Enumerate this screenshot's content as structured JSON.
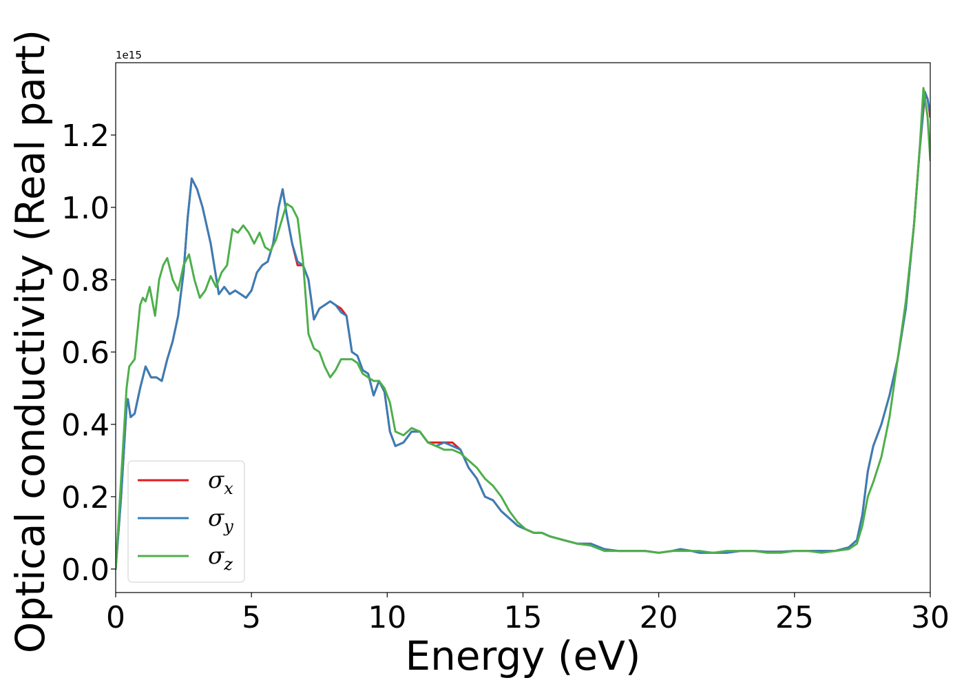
{
  "chart_data": {
    "type": "line",
    "xlabel": "Energy (eV)",
    "ylabel": "Optical conductivity (Real part)",
    "y_offset_label": "1e15",
    "xlim": [
      0,
      30
    ],
    "ylim": [
      -0.065,
      1.4
    ],
    "xticks": [
      0,
      5,
      10,
      15,
      20,
      25,
      30
    ],
    "xtick_labels": [
      "0",
      "5",
      "10",
      "15",
      "20",
      "25",
      "30"
    ],
    "yticks": [
      0.0,
      0.2,
      0.4,
      0.6,
      0.8,
      1.0,
      1.2
    ],
    "ytick_labels": [
      "0.0",
      "0.2",
      "0.4",
      "0.6",
      "0.8",
      "1.0",
      "1.2"
    ],
    "grid": false,
    "legend": "lower-left",
    "series": [
      {
        "name": "σ",
        "subscript": "x",
        "color": "#e41a1c",
        "x": [
          0,
          0.2,
          0.4,
          0.45,
          0.55,
          0.7,
          0.9,
          1.1,
          1.3,
          1.5,
          1.7,
          1.9,
          2.1,
          2.3,
          2.5,
          2.65,
          2.8,
          3.0,
          3.2,
          3.5,
          3.8,
          4.0,
          4.2,
          4.4,
          4.6,
          4.8,
          5.0,
          5.2,
          5.4,
          5.6,
          5.8,
          6.0,
          6.15,
          6.3,
          6.5,
          6.7,
          6.9,
          7.1,
          7.3,
          7.5,
          7.7,
          7.9,
          8.1,
          8.3,
          8.5,
          8.7,
          8.9,
          9.1,
          9.3,
          9.5,
          9.7,
          9.9,
          10.1,
          10.3,
          10.6,
          10.9,
          11.2,
          11.5,
          11.8,
          12.1,
          12.4,
          12.7,
          13.0,
          13.3,
          13.6,
          13.9,
          14.2,
          14.5,
          14.8,
          15.1,
          15.4,
          15.7,
          16.0,
          16.5,
          17.0,
          17.5,
          18.0,
          18.5,
          19.0,
          19.5,
          20.0,
          20.5,
          20.8,
          21.2,
          21.5,
          22.0,
          22.5,
          23.0,
          23.5,
          24.0,
          24.5,
          25.0,
          25.5,
          26.0,
          26.5,
          27.0,
          27.3,
          27.5,
          27.7,
          27.9,
          28.2,
          28.5,
          28.8,
          29.1,
          29.4,
          29.6,
          29.8,
          29.9,
          30.0
        ],
        "y": [
          0.0,
          0.2,
          0.45,
          0.47,
          0.42,
          0.43,
          0.5,
          0.56,
          0.53,
          0.53,
          0.52,
          0.58,
          0.63,
          0.7,
          0.82,
          0.97,
          1.08,
          1.05,
          1.0,
          0.9,
          0.76,
          0.78,
          0.76,
          0.77,
          0.76,
          0.75,
          0.77,
          0.82,
          0.84,
          0.85,
          0.9,
          1.0,
          1.05,
          0.98,
          0.9,
          0.84,
          0.84,
          0.8,
          0.69,
          0.72,
          0.73,
          0.74,
          0.73,
          0.72,
          0.7,
          0.6,
          0.59,
          0.55,
          0.54,
          0.48,
          0.52,
          0.49,
          0.38,
          0.34,
          0.35,
          0.38,
          0.38,
          0.35,
          0.35,
          0.35,
          0.35,
          0.33,
          0.28,
          0.25,
          0.2,
          0.19,
          0.16,
          0.14,
          0.12,
          0.11,
          0.1,
          0.1,
          0.09,
          0.08,
          0.07,
          0.07,
          0.055,
          0.05,
          0.05,
          0.05,
          0.045,
          0.05,
          0.055,
          0.05,
          0.045,
          0.045,
          0.045,
          0.05,
          0.05,
          0.048,
          0.048,
          0.05,
          0.05,
          0.05,
          0.05,
          0.06,
          0.08,
          0.15,
          0.27,
          0.34,
          0.4,
          0.48,
          0.58,
          0.72,
          0.95,
          1.15,
          1.31,
          1.3,
          1.25
        ]
      },
      {
        "name": "σ",
        "subscript": "y",
        "color": "#377eb8",
        "x": [
          0,
          0.2,
          0.4,
          0.45,
          0.55,
          0.7,
          0.9,
          1.1,
          1.3,
          1.5,
          1.7,
          1.9,
          2.1,
          2.3,
          2.5,
          2.65,
          2.8,
          3.0,
          3.2,
          3.5,
          3.8,
          4.0,
          4.2,
          4.4,
          4.6,
          4.8,
          5.0,
          5.2,
          5.4,
          5.6,
          5.8,
          6.0,
          6.15,
          6.3,
          6.5,
          6.7,
          6.9,
          7.1,
          7.3,
          7.5,
          7.7,
          7.9,
          8.1,
          8.3,
          8.5,
          8.7,
          8.9,
          9.1,
          9.3,
          9.5,
          9.7,
          9.9,
          10.1,
          10.3,
          10.6,
          10.9,
          11.2,
          11.5,
          11.8,
          12.1,
          12.4,
          12.7,
          13.0,
          13.3,
          13.6,
          13.9,
          14.2,
          14.5,
          14.8,
          15.1,
          15.4,
          15.7,
          16.0,
          16.5,
          17.0,
          17.5,
          18.0,
          18.5,
          19.0,
          19.5,
          20.0,
          20.5,
          20.8,
          21.2,
          21.5,
          22.0,
          22.5,
          23.0,
          23.5,
          24.0,
          24.5,
          25.0,
          25.5,
          26.0,
          26.5,
          27.0,
          27.3,
          27.5,
          27.7,
          27.9,
          28.2,
          28.5,
          28.8,
          29.1,
          29.4,
          29.6,
          29.8,
          29.9,
          30.0
        ],
        "y": [
          0.0,
          0.2,
          0.45,
          0.47,
          0.42,
          0.43,
          0.5,
          0.56,
          0.53,
          0.53,
          0.52,
          0.58,
          0.63,
          0.7,
          0.82,
          0.97,
          1.08,
          1.05,
          1.0,
          0.9,
          0.76,
          0.78,
          0.76,
          0.77,
          0.76,
          0.75,
          0.77,
          0.82,
          0.84,
          0.85,
          0.9,
          1.0,
          1.05,
          0.98,
          0.9,
          0.85,
          0.84,
          0.8,
          0.69,
          0.72,
          0.73,
          0.74,
          0.73,
          0.71,
          0.7,
          0.6,
          0.59,
          0.55,
          0.54,
          0.48,
          0.52,
          0.49,
          0.38,
          0.34,
          0.35,
          0.38,
          0.38,
          0.35,
          0.34,
          0.35,
          0.34,
          0.33,
          0.28,
          0.25,
          0.2,
          0.19,
          0.16,
          0.14,
          0.12,
          0.11,
          0.1,
          0.1,
          0.09,
          0.08,
          0.07,
          0.07,
          0.055,
          0.05,
          0.05,
          0.05,
          0.045,
          0.05,
          0.055,
          0.05,
          0.045,
          0.045,
          0.045,
          0.05,
          0.05,
          0.048,
          0.048,
          0.05,
          0.05,
          0.05,
          0.05,
          0.06,
          0.08,
          0.15,
          0.27,
          0.34,
          0.4,
          0.48,
          0.58,
          0.72,
          0.95,
          1.15,
          1.32,
          1.3,
          1.26
        ]
      },
      {
        "name": "σ",
        "subscript": "z",
        "color": "#4daf4a",
        "x": [
          0,
          0.2,
          0.4,
          0.5,
          0.7,
          0.9,
          1.0,
          1.1,
          1.25,
          1.45,
          1.6,
          1.75,
          1.9,
          2.1,
          2.3,
          2.5,
          2.7,
          2.9,
          3.1,
          3.3,
          3.5,
          3.7,
          3.9,
          4.1,
          4.3,
          4.5,
          4.7,
          4.9,
          5.1,
          5.3,
          5.5,
          5.7,
          5.9,
          6.1,
          6.3,
          6.5,
          6.7,
          6.9,
          7.1,
          7.3,
          7.5,
          7.7,
          7.9,
          8.1,
          8.3,
          8.5,
          8.7,
          8.9,
          9.1,
          9.3,
          9.5,
          9.7,
          9.9,
          10.1,
          10.3,
          10.6,
          10.9,
          11.2,
          11.5,
          11.8,
          12.1,
          12.4,
          12.7,
          13.0,
          13.3,
          13.6,
          13.9,
          14.2,
          14.5,
          14.8,
          15.1,
          15.4,
          15.7,
          16.0,
          16.5,
          17.0,
          17.5,
          18.0,
          18.5,
          19.0,
          19.5,
          20.0,
          20.5,
          21.0,
          21.5,
          22.0,
          22.5,
          23.0,
          23.5,
          24.0,
          24.5,
          25.0,
          25.5,
          26.0,
          26.5,
          27.0,
          27.3,
          27.5,
          27.7,
          27.9,
          28.2,
          28.5,
          28.8,
          29.1,
          29.4,
          29.6,
          29.75,
          29.9,
          30.0
        ],
        "y": [
          0.0,
          0.25,
          0.5,
          0.56,
          0.58,
          0.73,
          0.75,
          0.74,
          0.78,
          0.7,
          0.8,
          0.84,
          0.86,
          0.8,
          0.77,
          0.84,
          0.87,
          0.8,
          0.75,
          0.77,
          0.81,
          0.78,
          0.82,
          0.84,
          0.94,
          0.93,
          0.95,
          0.93,
          0.9,
          0.93,
          0.89,
          0.88,
          0.91,
          0.96,
          1.01,
          1.0,
          0.97,
          0.85,
          0.65,
          0.61,
          0.6,
          0.56,
          0.53,
          0.55,
          0.58,
          0.58,
          0.58,
          0.57,
          0.54,
          0.53,
          0.52,
          0.52,
          0.5,
          0.46,
          0.38,
          0.37,
          0.39,
          0.38,
          0.35,
          0.34,
          0.33,
          0.33,
          0.32,
          0.3,
          0.28,
          0.25,
          0.23,
          0.2,
          0.16,
          0.13,
          0.11,
          0.1,
          0.1,
          0.09,
          0.08,
          0.07,
          0.065,
          0.05,
          0.05,
          0.05,
          0.05,
          0.045,
          0.05,
          0.05,
          0.05,
          0.045,
          0.05,
          0.05,
          0.05,
          0.045,
          0.045,
          0.05,
          0.05,
          0.045,
          0.05,
          0.055,
          0.07,
          0.12,
          0.2,
          0.24,
          0.31,
          0.42,
          0.58,
          0.74,
          0.95,
          1.15,
          1.33,
          1.25,
          1.13
        ]
      }
    ]
  }
}
